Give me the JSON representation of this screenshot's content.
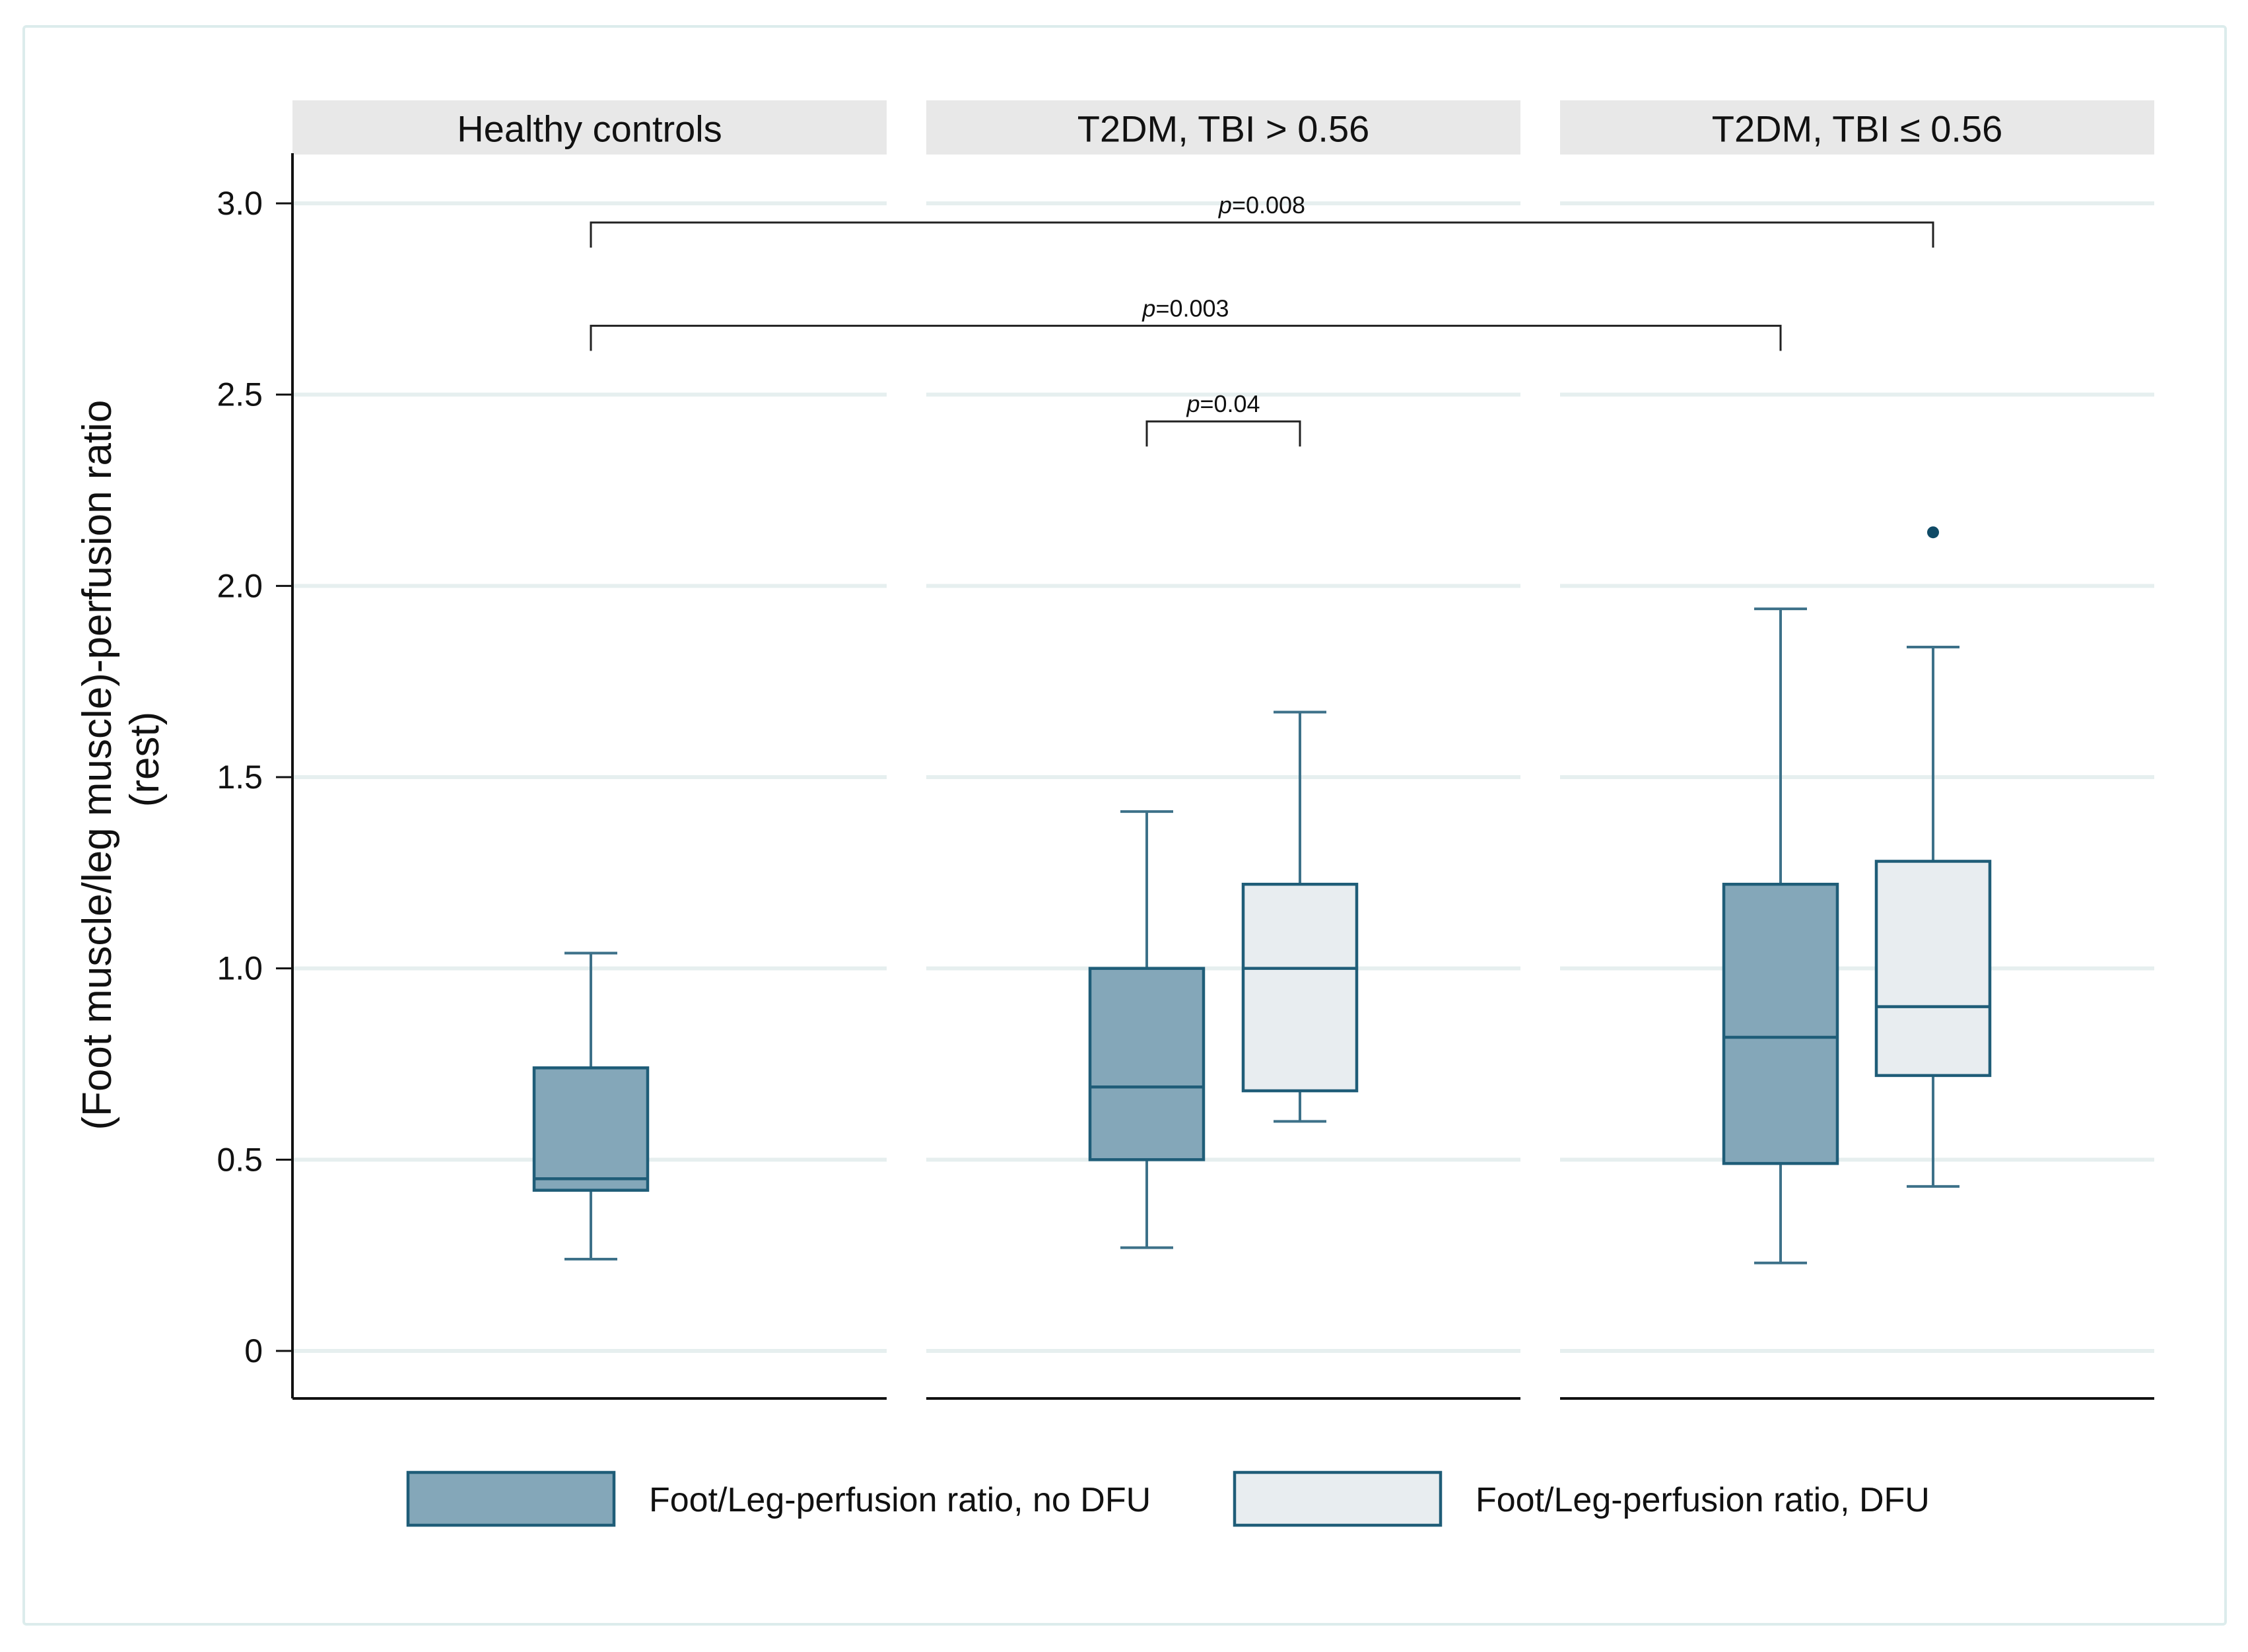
{
  "chart_data": {
    "type": "box",
    "ylabel_line1": "(Foot muscle/leg muscle)-perfusion ratio",
    "ylabel_line2": "(rest)",
    "ylim": [
      0,
      3.0
    ],
    "y_ticks": [
      {
        "value": 0,
        "label": "0"
      },
      {
        "value": 0.5,
        "label": "0.5"
      },
      {
        "value": 1.0,
        "label": "1.0"
      },
      {
        "value": 1.5,
        "label": "1.5"
      },
      {
        "value": 2.0,
        "label": "2.0"
      },
      {
        "value": 2.5,
        "label": "2.5"
      },
      {
        "value": 3.0,
        "label": "3.0"
      }
    ],
    "grid": true,
    "panels": [
      {
        "label": "Healthy controls",
        "boxes": [
          {
            "series": "Foot/Leg-perfusion ratio, no DFU",
            "slot": "center",
            "min": 0.24,
            "q1": 0.42,
            "median": 0.45,
            "q3": 0.74,
            "max": 1.04,
            "outliers": []
          }
        ]
      },
      {
        "label": "T2DM, TBI > 0.56",
        "boxes": [
          {
            "series": "Foot/Leg-perfusion ratio, no DFU",
            "slot": "left",
            "min": 0.27,
            "q1": 0.5,
            "median": 0.69,
            "q3": 1.0,
            "max": 1.41,
            "outliers": []
          },
          {
            "series": "Foot/Leg-perfusion ratio, DFU",
            "slot": "right",
            "min": 0.6,
            "q1": 0.68,
            "median": 1.0,
            "q3": 1.22,
            "max": 1.67,
            "outliers": []
          }
        ]
      },
      {
        "label": "T2DM, TBI ≤ 0.56",
        "boxes": [
          {
            "series": "Foot/Leg-perfusion ratio, no DFU",
            "slot": "left",
            "min": 0.23,
            "q1": 0.49,
            "median": 0.82,
            "q3": 1.22,
            "max": 1.94,
            "outliers": []
          },
          {
            "series": "Foot/Leg-perfusion ratio, DFU",
            "slot": "right",
            "min": 0.43,
            "q1": 0.72,
            "median": 0.9,
            "q3": 1.28,
            "max": 1.84,
            "outliers": [
              2.14
            ]
          }
        ]
      }
    ],
    "series": [
      {
        "name": "Foot/Leg-perfusion ratio, no DFU",
        "fill": "#84a7b9",
        "stroke": "#1f5d78"
      },
      {
        "name": "Foot/Leg-perfusion ratio, DFU",
        "fill": "#e8edf0",
        "stroke": "#1f5d78"
      }
    ],
    "annotations": [
      {
        "p_symbol": "p",
        "p_value": "=0.008",
        "from": {
          "panel": 0,
          "box": 0
        },
        "to": {
          "panel": 2,
          "box": 1
        },
        "y": 2.95
      },
      {
        "p_symbol": "p",
        "p_value": "=0.003",
        "from": {
          "panel": 0,
          "box": 0
        },
        "to": {
          "panel": 2,
          "box": 0
        },
        "y": 2.68
      },
      {
        "p_symbol": "p",
        "p_value": "=0.04",
        "from": {
          "panel": 1,
          "box": 0
        },
        "to": {
          "panel": 1,
          "box": 1
        },
        "y": 2.43
      }
    ],
    "legend": {
      "position": "bottom",
      "entries": [
        "Foot/Leg-perfusion ratio, no DFU",
        "Foot/Leg-perfusion ratio, DFU"
      ]
    }
  }
}
